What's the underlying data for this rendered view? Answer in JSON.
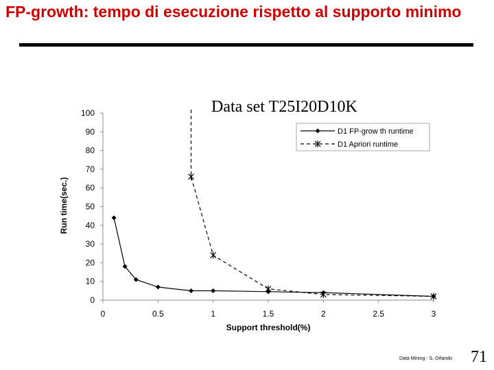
{
  "slide": {
    "title": "FP-growth: tempo di esecuzione rispetto al supporto minimo",
    "footer": "Data Mining - S. Orlando",
    "page_number": "71"
  },
  "chart_data": {
    "type": "line",
    "title": "Data set T25I20D10K",
    "xlabel": "Support threshold(%)",
    "ylabel": "Run time(sec.)",
    "xlim": [
      0,
      3
    ],
    "ylim": [
      0,
      100
    ],
    "xticks": [
      0,
      0.5,
      1,
      1.5,
      2,
      2.5,
      3
    ],
    "xtick_labels": [
      "0",
      "0.5",
      "1",
      "1.5",
      "2",
      "2.5",
      "3"
    ],
    "yticks": [
      0,
      10,
      20,
      30,
      40,
      50,
      60,
      70,
      80,
      90,
      100
    ],
    "ytick_labels": [
      "0",
      "10",
      "20",
      "30",
      "40",
      "50",
      "60",
      "70",
      "80",
      "90",
      "100"
    ],
    "grid": false,
    "legend_position": "top-right",
    "series": [
      {
        "name": "D1 FP-grow th runtime",
        "style": "solid",
        "marker": "diamond",
        "color": "#000000",
        "points": [
          [
            0.1,
            44
          ],
          [
            0.2,
            18
          ],
          [
            0.3,
            11
          ],
          [
            0.5,
            7
          ],
          [
            0.8,
            5
          ],
          [
            1,
            5
          ],
          [
            1.5,
            4.5
          ],
          [
            2,
            4
          ],
          [
            3,
            2
          ]
        ]
      },
      {
        "name": "D1 Apriori runtime",
        "style": "dashed",
        "marker": "asterisk",
        "color": "#000000",
        "points": [
          [
            0.8,
            102
          ],
          [
            0.8,
            88
          ],
          [
            0.8,
            66
          ],
          [
            1,
            24
          ],
          [
            1.5,
            6
          ],
          [
            2,
            3
          ],
          [
            3,
            2
          ]
        ]
      }
    ]
  }
}
